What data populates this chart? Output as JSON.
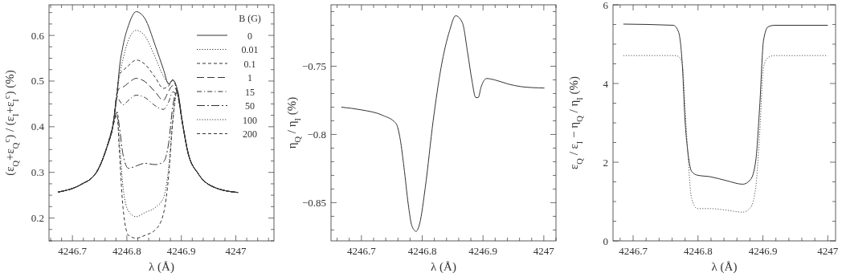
{
  "chart_data": [
    {
      "type": "line",
      "xlabel": "λ (Å)",
      "ylabel": "(ε$_{Q}$+ε$_{Q}$$^{c}$) / (ε$_{I}$+ε$_{I}$$^{c}$)  (%)",
      "legend_title": "B (G)",
      "legend": "top right",
      "x": [
        4246.674,
        4246.715,
        4246.744,
        4246.764,
        4246.774,
        4246.782,
        4246.786,
        4246.793,
        4246.803,
        4246.817,
        4246.833,
        4246.852,
        4246.867,
        4246.877,
        4246.884,
        4246.892,
        4246.902,
        4246.912,
        4246.931,
        4246.961,
        4247.004
      ],
      "xlim": [
        4246.657,
        4247.07
      ],
      "xticks": [
        {
          "value": 4246.66,
          "label": null
        },
        {
          "value": 4246.68,
          "label": null
        },
        4246.7,
        {
          "value": 4246.72,
          "label": null
        },
        {
          "value": 4246.74,
          "label": null
        },
        {
          "value": 4246.76,
          "label": null
        },
        {
          "value": 4246.78,
          "label": null
        },
        4246.8,
        {
          "value": 4246.82,
          "label": null
        },
        {
          "value": 4246.84,
          "label": null
        },
        {
          "value": 4246.86,
          "label": null
        },
        {
          "value": 4246.88,
          "label": null
        },
        4246.9,
        {
          "value": 4246.92,
          "label": null
        },
        {
          "value": 4246.94,
          "label": null
        },
        {
          "value": 4246.96,
          "label": null
        },
        {
          "value": 4246.98,
          "label": null
        },
        4247,
        {
          "value": 4247.02,
          "label": null
        },
        {
          "value": 4247.04,
          "label": null
        },
        {
          "value": 4247.06,
          "label": null
        }
      ],
      "ylim": [
        0.15,
        0.667
      ],
      "yticks": [
        {
          "value": 0.15,
          "label": null
        },
        {
          "value": 0.175,
          "label": null
        },
        0.2,
        {
          "value": 0.225,
          "label": null
        },
        {
          "value": 0.25,
          "label": null
        },
        {
          "value": 0.275,
          "label": null
        },
        0.3,
        {
          "value": 0.325,
          "label": null
        },
        {
          "value": 0.35,
          "label": null
        },
        {
          "value": 0.375,
          "label": null
        },
        0.4,
        {
          "value": 0.425,
          "label": null
        },
        {
          "value": 0.45,
          "label": null
        },
        {
          "value": 0.475,
          "label": null
        },
        0.5,
        {
          "value": 0.525,
          "label": null
        },
        {
          "value": 0.55,
          "label": null
        },
        {
          "value": 0.575,
          "label": null
        },
        0.6,
        {
          "value": 0.625,
          "label": null
        },
        {
          "value": 0.65,
          "label": null
        }
      ],
      "series": [
        {
          "name": "0",
          "color": "#333333",
          "line_style": "solid",
          "values": [
            0.257,
            0.273,
            0.3,
            0.358,
            0.4,
            0.473,
            0.526,
            0.578,
            0.622,
            0.652,
            0.637,
            0.578,
            0.526,
            0.493,
            0.503,
            0.484,
            0.408,
            0.344,
            0.297,
            0.267,
            0.256
          ]
        },
        {
          "name": "0.01",
          "color": "#333333",
          "line_style": "dotted",
          "values": [
            0.257,
            0.273,
            0.3,
            0.358,
            0.4,
            0.47,
            0.508,
            0.549,
            0.59,
            0.611,
            0.599,
            0.552,
            0.511,
            0.496,
            0.5,
            0.482,
            0.408,
            0.344,
            0.297,
            0.267,
            0.256
          ]
        },
        {
          "name": "0.1",
          "color": "#333333",
          "line_style": "dashed",
          "values": [
            0.257,
            0.273,
            0.3,
            0.358,
            0.4,
            0.479,
            0.514,
            0.523,
            0.534,
            0.546,
            0.537,
            0.508,
            0.484,
            0.49,
            0.502,
            0.479,
            0.408,
            0.344,
            0.297,
            0.267,
            0.256
          ]
        },
        {
          "name": "1",
          "color": "#333333",
          "line_style": "longdash",
          "values": [
            0.257,
            0.273,
            0.3,
            0.358,
            0.4,
            0.473,
            0.484,
            0.487,
            0.496,
            0.506,
            0.499,
            0.476,
            0.458,
            0.479,
            0.49,
            0.476,
            0.408,
            0.344,
            0.297,
            0.267,
            0.256
          ]
        },
        {
          "name": "15",
          "color": "#333333",
          "line_style": "dashdot",
          "values": [
            0.257,
            0.273,
            0.3,
            0.358,
            0.4,
            0.467,
            0.458,
            0.448,
            0.458,
            0.469,
            0.464,
            0.446,
            0.438,
            0.455,
            0.476,
            0.47,
            0.408,
            0.344,
            0.297,
            0.267,
            0.256
          ]
        },
        {
          "name": "50",
          "color": "#333333",
          "line_style": "longdashdot",
          "values": [
            0.257,
            0.273,
            0.3,
            0.358,
            0.4,
            0.432,
            0.402,
            0.338,
            0.309,
            0.314,
            0.32,
            0.317,
            0.323,
            0.367,
            0.443,
            0.479,
            0.408,
            0.344,
            0.297,
            0.267,
            0.256
          ]
        },
        {
          "name": "100",
          "color": "#333333",
          "line_style": "dotted",
          "values": [
            0.257,
            0.273,
            0.3,
            0.358,
            0.4,
            0.432,
            0.373,
            0.267,
            0.215,
            0.203,
            0.212,
            0.223,
            0.244,
            0.314,
            0.414,
            0.476,
            0.408,
            0.344,
            0.297,
            0.267,
            0.256
          ]
        },
        {
          "name": "200",
          "color": "#333333",
          "line_style": "dashed",
          "values": [
            0.257,
            0.273,
            0.3,
            0.358,
            0.4,
            0.426,
            0.35,
            0.221,
            0.162,
            0.156,
            0.162,
            0.174,
            0.209,
            0.297,
            0.408,
            0.479,
            0.408,
            0.344,
            0.297,
            0.267,
            0.256
          ]
        }
      ]
    },
    {
      "type": "line",
      "xlabel": "λ (Å)",
      "ylabel": "η$_{Q}$ / η$_{I}$  (%)",
      "x": [
        4246.667,
        4246.7,
        4246.735,
        4246.757,
        4246.764,
        4246.77,
        4246.777,
        4246.783,
        4246.79,
        4246.796,
        4246.805,
        4246.818,
        4246.831,
        4246.845,
        4246.855,
        4246.866,
        4246.875,
        4246.882,
        4246.888,
        4246.892,
        4246.897,
        4246.906,
        4246.919,
        4246.941,
        4246.963,
        4247.001
      ],
      "xlim": [
        4246.65,
        4247.02
      ],
      "xticks": [
        {
          "value": 4246.66,
          "label": null
        },
        {
          "value": 4246.68,
          "label": null
        },
        4246.7,
        {
          "value": 4246.72,
          "label": null
        },
        {
          "value": 4246.74,
          "label": null
        },
        {
          "value": 4246.76,
          "label": null
        },
        {
          "value": 4246.78,
          "label": null
        },
        4246.8,
        {
          "value": 4246.82,
          "label": null
        },
        {
          "value": 4246.84,
          "label": null
        },
        {
          "value": 4246.86,
          "label": null
        },
        {
          "value": 4246.88,
          "label": null
        },
        4246.9,
        {
          "value": 4246.92,
          "label": null
        },
        {
          "value": 4246.94,
          "label": null
        },
        {
          "value": 4246.96,
          "label": null
        },
        {
          "value": 4246.98,
          "label": null
        },
        4247,
        {
          "value": 4247.02,
          "label": null
        }
      ],
      "ylim": [
        -0.878,
        -0.705
      ],
      "yticks": [
        {
          "value": -0.87,
          "label": null
        },
        {
          "value": -0.86,
          "label": null
        },
        {
          "value": -0.85,
          "label": "−0.85"
        },
        {
          "value": -0.84,
          "label": null
        },
        {
          "value": -0.83,
          "label": null
        },
        {
          "value": -0.82,
          "label": null
        },
        {
          "value": -0.81,
          "label": null
        },
        {
          "value": -0.8,
          "label": "−0.8"
        },
        {
          "value": -0.79,
          "label": null
        },
        {
          "value": -0.78,
          "label": null
        },
        {
          "value": -0.77,
          "label": null
        },
        {
          "value": -0.76,
          "label": null
        },
        {
          "value": -0.75,
          "label": "−0.75"
        },
        {
          "value": -0.74,
          "label": null
        },
        {
          "value": -0.73,
          "label": null
        },
        {
          "value": -0.72,
          "label": null
        },
        {
          "value": -0.71,
          "label": null
        }
      ],
      "series": [
        {
          "color": "#333333",
          "line_style": "solid",
          "values": [
            -0.78,
            -0.782,
            -0.786,
            -0.792,
            -0.804,
            -0.824,
            -0.851,
            -0.867,
            -0.871,
            -0.865,
            -0.839,
            -0.79,
            -0.751,
            -0.724,
            -0.713,
            -0.718,
            -0.741,
            -0.761,
            -0.773,
            -0.773,
            -0.765,
            -0.759,
            -0.76,
            -0.763,
            -0.765,
            -0.766
          ]
        }
      ]
    },
    {
      "type": "line",
      "xlabel": "λ (Å)",
      "ylabel": "ε$_{Q}$ / ε$_{I}$ − η$_{Q}$ / η$_{I}$  (%)",
      "x": [
        4246.685,
        4246.762,
        4246.77,
        4246.776,
        4246.78,
        4246.784,
        4246.79,
        4246.799,
        4246.819,
        4246.844,
        4246.869,
        4246.881,
        4246.889,
        4246.895,
        4246.901,
        4246.908,
        4246.918,
        4247.0
      ],
      "xlim": [
        4246.669,
        4247.012
      ],
      "xticks": [
        {
          "value": 4246.68,
          "label": null
        },
        4246.7,
        {
          "value": 4246.72,
          "label": null
        },
        {
          "value": 4246.74,
          "label": null
        },
        {
          "value": 4246.76,
          "label": null
        },
        {
          "value": 4246.78,
          "label": null
        },
        4246.8,
        {
          "value": 4246.82,
          "label": null
        },
        {
          "value": 4246.84,
          "label": null
        },
        {
          "value": 4246.86,
          "label": null
        },
        {
          "value": 4246.88,
          "label": null
        },
        4246.9,
        {
          "value": 4246.92,
          "label": null
        },
        {
          "value": 4246.94,
          "label": null
        },
        {
          "value": 4246.96,
          "label": null
        },
        {
          "value": 4246.98,
          "label": null
        },
        4247
      ],
      "ylim": [
        0,
        6
      ],
      "yticks": [
        0,
        {
          "value": 0.5,
          "label": null
        },
        {
          "value": 1,
          "label": null
        },
        {
          "value": 1.5,
          "label": null
        },
        2,
        {
          "value": 2.5,
          "label": null
        },
        {
          "value": 3,
          "label": null
        },
        {
          "value": 3.5,
          "label": null
        },
        4,
        {
          "value": 4.5,
          "label": null
        },
        {
          "value": 5,
          "label": null
        },
        {
          "value": 5.5,
          "label": null
        },
        6
      ],
      "series": [
        {
          "color": "#333333",
          "line_style": "solid",
          "values": [
            5.51,
            5.48,
            5.31,
            4.42,
            3.06,
            2.31,
            1.77,
            1.67,
            1.63,
            1.53,
            1.44,
            1.56,
            2.04,
            3.4,
            5.1,
            5.44,
            5.48,
            5.48
          ]
        },
        {
          "color": "#555555",
          "line_style": "dotted",
          "values": [
            4.71,
            4.71,
            4.69,
            4.49,
            3.4,
            2.31,
            1.09,
            0.82,
            0.82,
            0.78,
            0.73,
            0.85,
            1.36,
            2.72,
            4.42,
            4.66,
            4.71,
            4.71
          ]
        }
      ]
    }
  ]
}
